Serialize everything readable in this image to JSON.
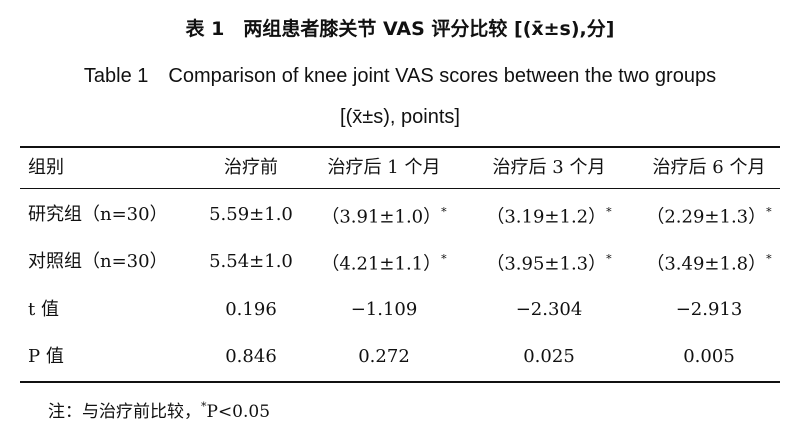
{
  "title_cn": "表 1　两组患者膝关节 VAS 评分比较 [(x̄±s),分]",
  "title_en": "Table 1　Comparison of knee joint VAS scores between the two groups [(x̄±s), points]",
  "table": {
    "header": [
      "组别",
      "治疗前",
      "治疗后 1 个月",
      "治疗后 3 个月",
      "治疗后 6 个月"
    ],
    "rows": [
      [
        {
          "text": "研究组（n=30）"
        },
        {
          "text": "5.59±1.0"
        },
        {
          "text": "（3.91±1.0）",
          "sup": "*"
        },
        {
          "text": "（3.19±1.2）",
          "sup": "*"
        },
        {
          "text": "（2.29±1.3）",
          "sup": "*"
        }
      ],
      [
        {
          "text": "对照组（n=30）"
        },
        {
          "text": "5.54±1.0"
        },
        {
          "text": "（4.21±1.1）",
          "sup": "*"
        },
        {
          "text": "（3.95±1.3）",
          "sup": "*"
        },
        {
          "text": "（3.49±1.8）",
          "sup": "*"
        }
      ],
      [
        {
          "text": "t 值"
        },
        {
          "text": "0.196"
        },
        {
          "text": "−1.109"
        },
        {
          "text": "−2.304"
        },
        {
          "text": "−2.913"
        }
      ],
      [
        {
          "text": "P 值"
        },
        {
          "text": "0.846"
        },
        {
          "text": "0.272"
        },
        {
          "text": "0.025"
        },
        {
          "text": "0.005"
        }
      ]
    ]
  },
  "note": {
    "prefix": "注：与治疗前比较，",
    "sup": "*",
    "rest": "P<0.05"
  }
}
